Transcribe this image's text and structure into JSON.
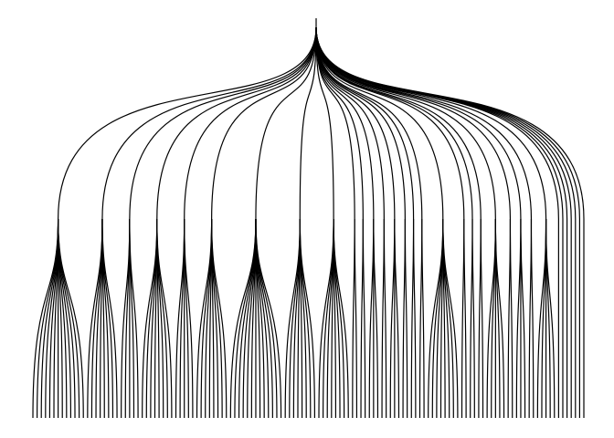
{
  "diagram": {
    "type": "tree",
    "orientation": "top-down",
    "line_style": "curved",
    "stroke_color": "#000000",
    "background_color": "#ffffff",
    "levels": 3,
    "root_children": 33,
    "leaves_per_child": [
      13,
      8,
      5,
      8,
      5,
      8,
      13,
      8,
      8,
      2,
      2,
      3,
      2,
      3,
      2,
      2,
      2,
      8,
      2,
      2,
      2,
      5,
      2,
      3,
      2,
      5,
      1,
      1,
      1,
      1,
      1,
      1,
      1
    ]
  }
}
